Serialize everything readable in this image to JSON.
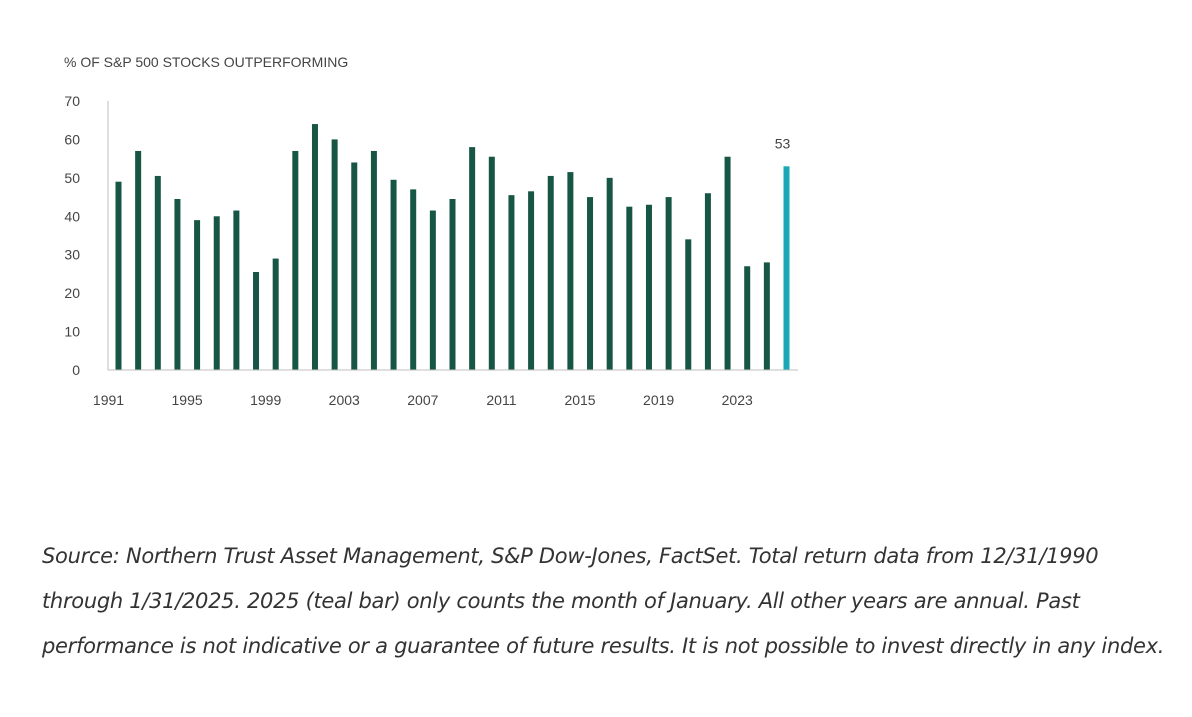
{
  "chart_data": {
    "type": "bar",
    "ylabel": "% OF S&P 500 STOCKS OUTPERFORMING",
    "ylim": [
      0,
      70
    ],
    "yticks": [
      0,
      10,
      20,
      30,
      40,
      50,
      60,
      70
    ],
    "x": [
      1991,
      1992,
      1993,
      1994,
      1995,
      1996,
      1997,
      1998,
      1999,
      2000,
      2001,
      2002,
      2003,
      2004,
      2005,
      2006,
      2007,
      2008,
      2009,
      2010,
      2011,
      2012,
      2013,
      2014,
      2015,
      2016,
      2017,
      2018,
      2019,
      2020,
      2021,
      2022,
      2023,
      2024,
      2025
    ],
    "xtick_labels": [
      "1991",
      "1995",
      "1999",
      "2003",
      "2007",
      "2011",
      "2015",
      "2019",
      "2023"
    ],
    "values": [
      49,
      57,
      50.5,
      44.5,
      39,
      40,
      41.5,
      25.5,
      29,
      57,
      64,
      60,
      54,
      57,
      49.5,
      47,
      41.5,
      44.5,
      58,
      55.5,
      45.5,
      46.5,
      50.5,
      51.5,
      45,
      50,
      42.5,
      43,
      45,
      34,
      46,
      55.5,
      27,
      28,
      53
    ],
    "highlight_index": 34,
    "data_labels": [
      {
        "index": 34,
        "text": "53"
      }
    ],
    "colors": {
      "bar": "#175645",
      "highlight": "#1ba7b5"
    },
    "grid": false
  },
  "source_note": "Source: Northern Trust Asset Management, S&P Dow-Jones, FactSet. Total return data from 12/31/1990 through 1/31/2025. 2025 (teal bar) only counts the month of January. All other years are annual. Past performance is not indicative or a guarantee of future results. It is not possible to invest directly in any index."
}
